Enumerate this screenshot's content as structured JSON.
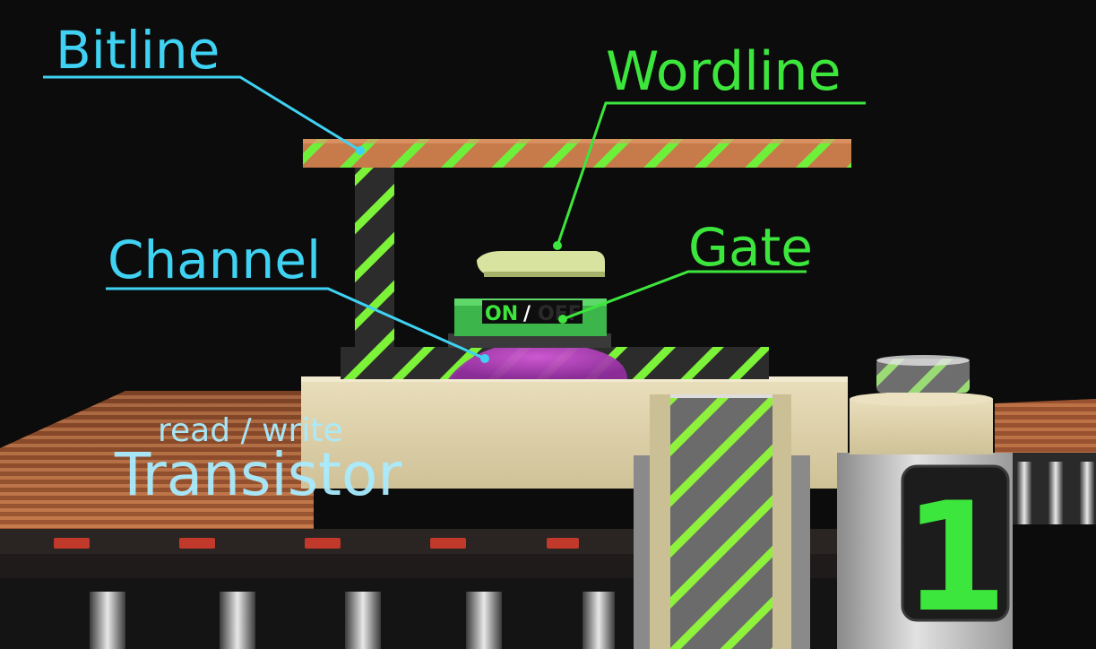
{
  "labels": {
    "bitline": "Bitline",
    "wordline": "Wordline",
    "channel": "Channel",
    "gate": "Gate",
    "subtitle": "read / write",
    "title": "Transistor",
    "gate_on": "ON",
    "gate_sep": "/",
    "gate_off": "OFF",
    "bit_value": "1"
  },
  "colors": {
    "cyan": "#3fd2f2",
    "green": "#3ce63c",
    "stripe": "#7cf238",
    "copper": "#c87848",
    "beige": "#e6d9b2",
    "purple": "#b03fbf",
    "background": "#0c0c0c"
  }
}
